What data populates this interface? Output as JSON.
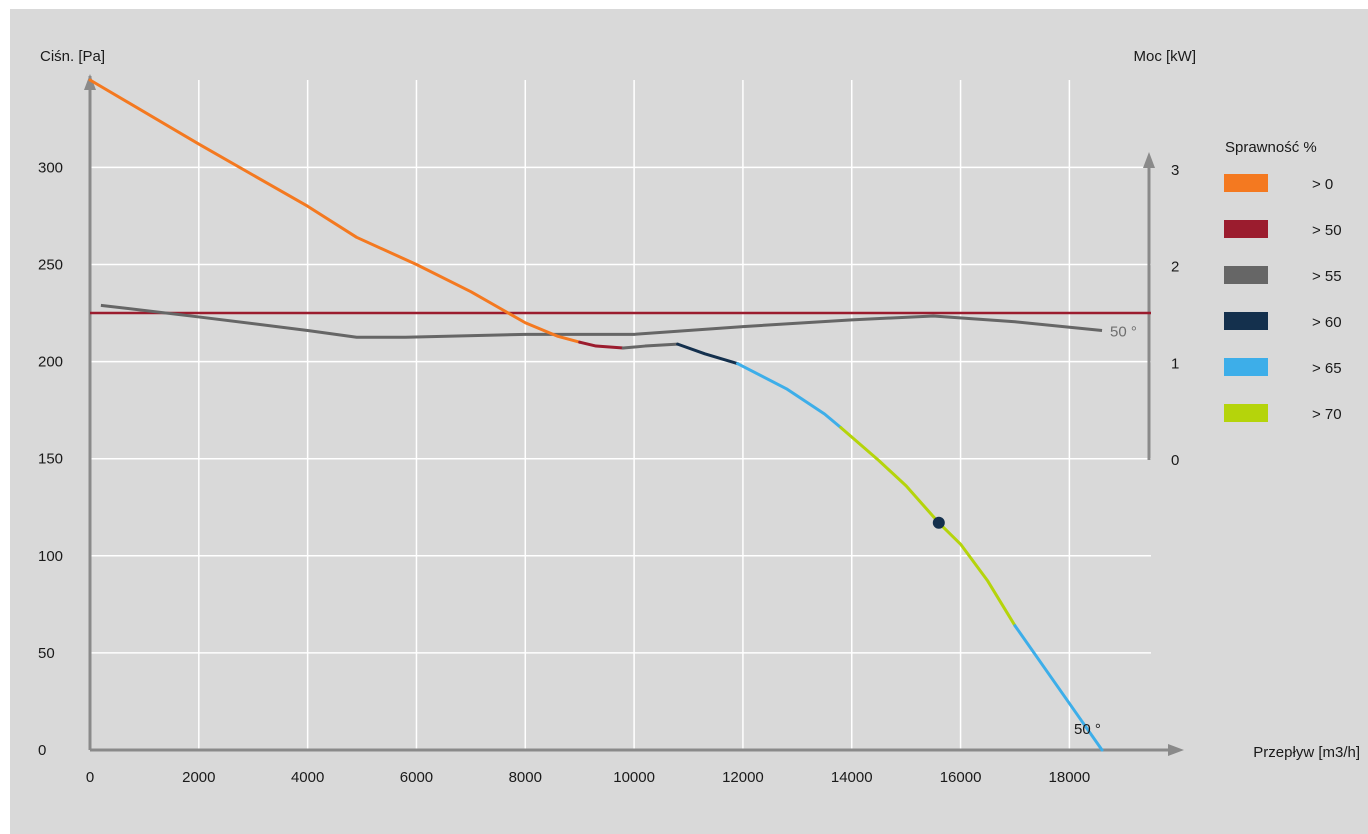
{
  "chart_data": {
    "type": "line",
    "y_left_label": "Ciśn. [Pa]",
    "y_right_label": "Moc [kW]",
    "x_label": "Przepływ [m3/h]",
    "x_ticks": [
      "0",
      "2000",
      "4000",
      "6000",
      "8000",
      "10000",
      "12000",
      "14000",
      "16000",
      "18000"
    ],
    "y_left_ticks": [
      "0",
      "50",
      "100",
      "150",
      "200",
      "250",
      "300"
    ],
    "y_right_ticks": [
      "0",
      "1",
      "2",
      "3"
    ],
    "xlim": [
      0,
      19500
    ],
    "ylim_left": [
      0,
      345
    ],
    "ylim_right": [
      0,
      3
    ],
    "grid": true,
    "legend": {
      "title": "Sprawność %",
      "position": "right",
      "items": [
        {
          "label": "> 0",
          "color": "#f47920"
        },
        {
          "label": "> 50",
          "color": "#9b1c2e"
        },
        {
          "label": "> 55",
          "color": "#666666"
        },
        {
          "label": "> 60",
          "color": "#14304d"
        },
        {
          "label": "> 65",
          "color": "#3daee9"
        },
        {
          "label": "> 70",
          "color": "#b5d40b"
        }
      ]
    },
    "pressure_curve": {
      "axis": "left",
      "segments": [
        {
          "efficiency": "> 0",
          "color": "#f47920",
          "points": [
            [
              0,
              345
            ],
            [
              2000,
              312
            ],
            [
              4000,
              280
            ],
            [
              4900,
              264
            ],
            [
              6000,
              250
            ],
            [
              7000,
              236
            ],
            [
              8000,
              220
            ],
            [
              8600,
              213
            ],
            [
              9000,
              210
            ]
          ]
        },
        {
          "efficiency": "> 50",
          "color": "#9b1c2e",
          "points": [
            [
              9000,
              210
            ],
            [
              9300,
              208
            ],
            [
              9800,
              207
            ]
          ]
        },
        {
          "efficiency": "> 55",
          "color": "#666666",
          "points": [
            [
              9800,
              207
            ],
            [
              10200,
              208
            ],
            [
              10800,
              209
            ]
          ]
        },
        {
          "efficiency": "> 60",
          "color": "#14304d",
          "points": [
            [
              10800,
              209
            ],
            [
              11300,
              204
            ],
            [
              11900,
              199
            ]
          ]
        },
        {
          "efficiency": "> 65",
          "color": "#3daee9",
          "points": [
            [
              11900,
              199
            ],
            [
              12800,
              186
            ],
            [
              13500,
              173
            ],
            [
              13800,
              166
            ]
          ]
        },
        {
          "efficiency": "> 70",
          "color": "#b5d40b",
          "points": [
            [
              13800,
              166
            ],
            [
              14500,
              149
            ],
            [
              15000,
              136
            ],
            [
              15600,
              117
            ],
            [
              16000,
              106
            ],
            [
              16500,
              87
            ],
            [
              17000,
              64
            ]
          ]
        },
        {
          "efficiency": "> 65",
          "color": "#3daee9",
          "points": [
            [
              17000,
              64
            ],
            [
              17600,
              40
            ],
            [
              18200,
              16
            ],
            [
              18600,
              0
            ]
          ]
        }
      ],
      "end_label": "50 °"
    },
    "power_curve": {
      "axis": "right",
      "color": "#666666",
      "points": [
        [
          200,
          1.6
        ],
        [
          2000,
          1.48
        ],
        [
          4000,
          1.34
        ],
        [
          4900,
          1.27
        ],
        [
          5800,
          1.27
        ],
        [
          8000,
          1.3
        ],
        [
          10000,
          1.3
        ],
        [
          12000,
          1.38
        ],
        [
          14000,
          1.45
        ],
        [
          15500,
          1.49
        ],
        [
          17000,
          1.43
        ],
        [
          18600,
          1.34
        ]
      ],
      "end_label": "50 °"
    },
    "reference_line": {
      "axis": "left",
      "value": 225,
      "color": "#9b1c2e"
    },
    "operating_point": {
      "x": 15600,
      "y": 117,
      "color": "#14304d"
    }
  }
}
